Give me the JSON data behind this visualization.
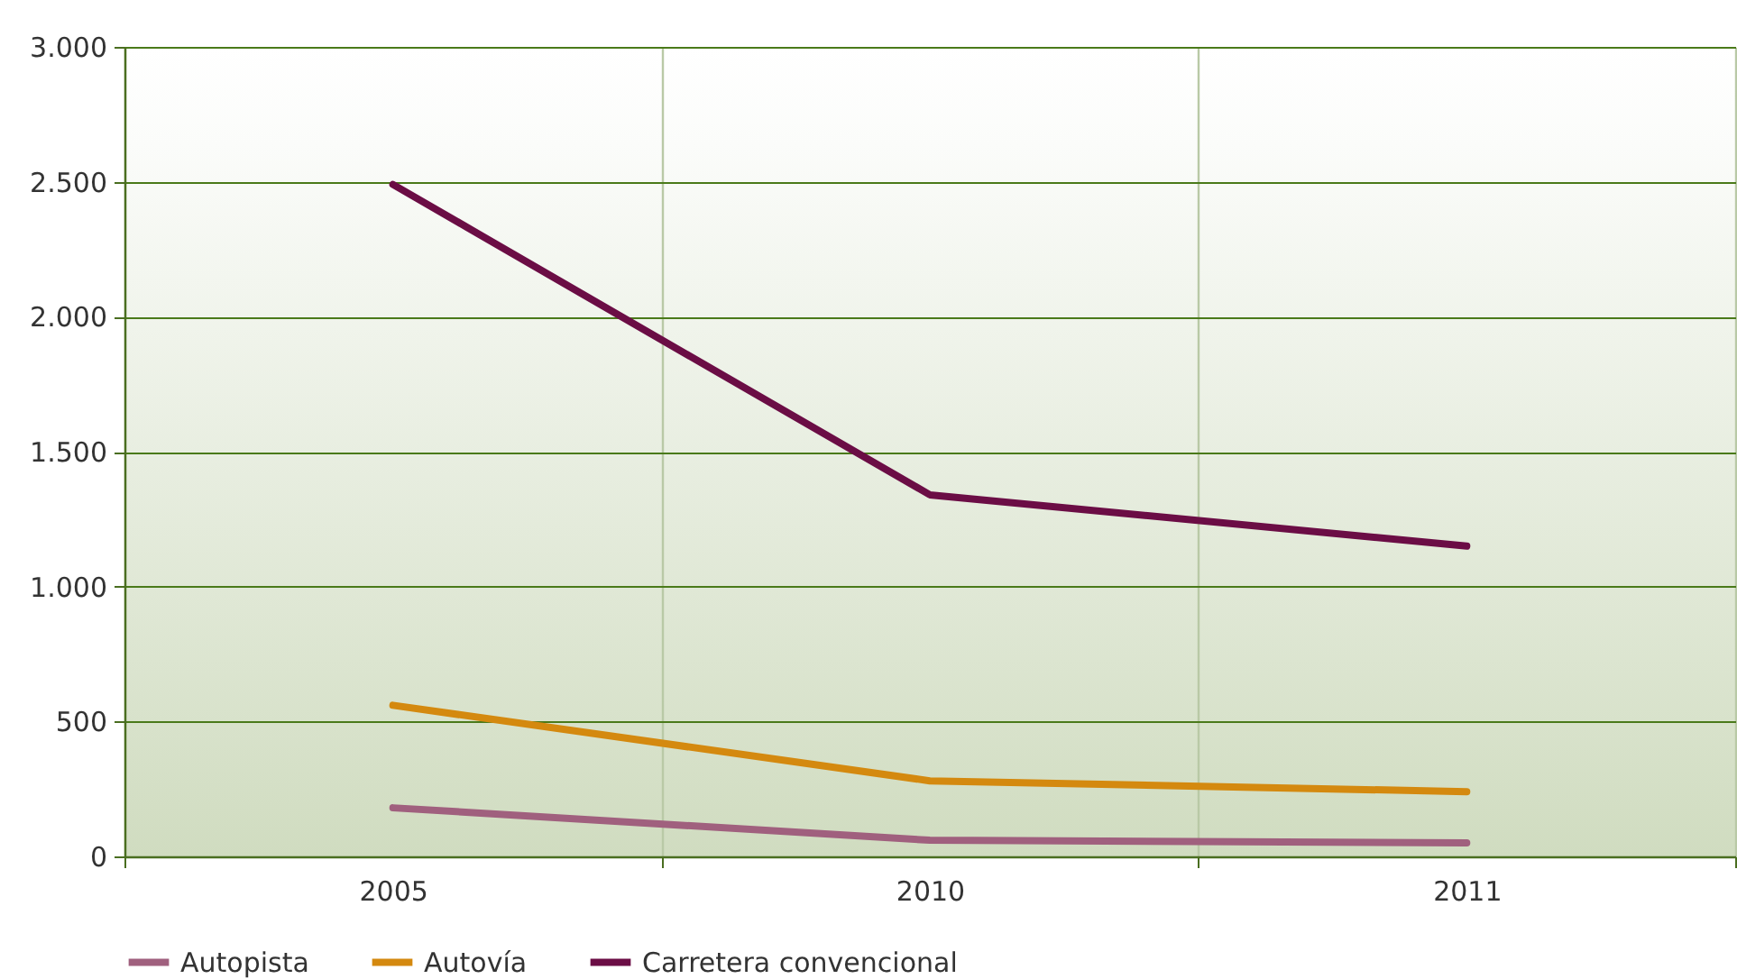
{
  "chart_data": {
    "type": "line",
    "categories": [
      "2005",
      "2010",
      "2011"
    ],
    "series": [
      {
        "name": "Autopista",
        "color": "#a0607e",
        "values": [
          180,
          60,
          50
        ]
      },
      {
        "name": "Autovía",
        "color": "#d4890f",
        "values": [
          560,
          280,
          240
        ]
      },
      {
        "name": "Carretera convencional",
        "color": "#6b0d45",
        "values": [
          2490,
          1340,
          1150
        ]
      }
    ],
    "ylim": [
      0,
      3000
    ],
    "yticks": [
      {
        "value": 0,
        "label": "0"
      },
      {
        "value": 500,
        "label": "500"
      },
      {
        "value": 1000,
        "label": "1.000"
      },
      {
        "value": 1500,
        "label": "1.500"
      },
      {
        "value": 2000,
        "label": "2.000"
      },
      {
        "value": 2500,
        "label": "2.500"
      },
      {
        "value": 3000,
        "label": "3.000"
      }
    ],
    "grid": true,
    "legend": "bottom",
    "marker": "none",
    "line_style": "solid"
  }
}
